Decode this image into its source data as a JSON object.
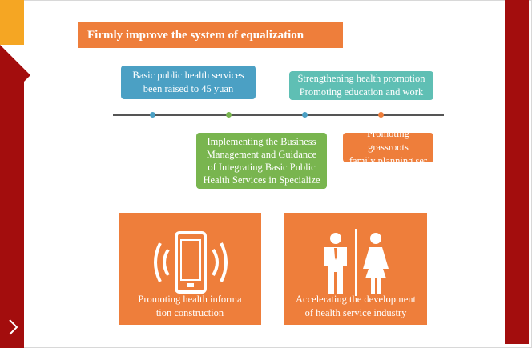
{
  "title": "Firmly improve the system of equalization",
  "timeline_items": [
    {
      "lines": [
        "Basic public health services",
        "been raised to 45 yuan"
      ],
      "color": "#4ba0c4"
    },
    {
      "lines": [
        "Strengthening health promotion",
        "Promoting education and work"
      ],
      "color": "#5fbfb4"
    },
    {
      "lines": [
        "Implementing the Business",
        "Management and Guidance",
        "of Integrating Basic Public",
        "Health Services in Specialize"
      ],
      "color": "#79b54f"
    },
    {
      "lines": [
        "Promoting grassroots",
        "family planning ser"
      ],
      "color": "#ee7e3b"
    }
  ],
  "tiles": [
    {
      "icon": "mobile-phone-icon",
      "lines": [
        "Promoting health informa",
        "tion construction"
      ]
    },
    {
      "icon": "man-woman-icon",
      "lines": [
        "Accelerating the development",
        "of health service industry"
      ]
    }
  ],
  "colors": {
    "accent_orange": "#ee7e3b",
    "accent_red": "#a30d0d",
    "accent_yellow": "#f5a623"
  }
}
